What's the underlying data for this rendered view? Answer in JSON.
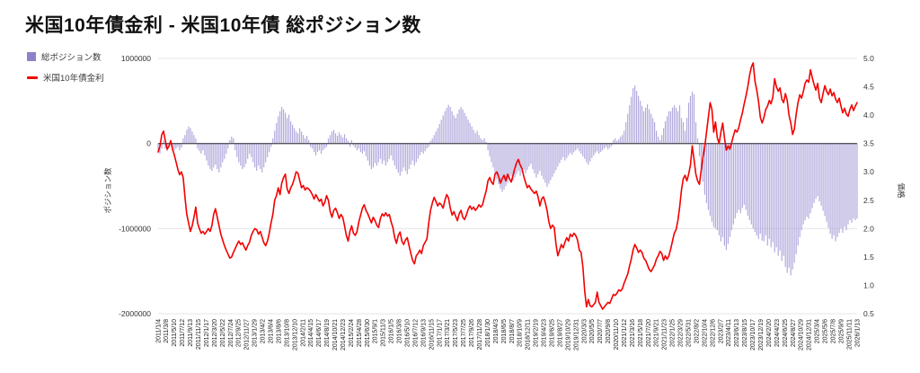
{
  "title": "米国10年債金利 - 米国10年債 総ポジション数",
  "legend": {
    "items": [
      {
        "label": "総ポジション数",
        "color": "#8c82cc",
        "marker": "square"
      },
      {
        "label": "米国10年債金利",
        "color": "#f20000",
        "marker": "line"
      }
    ]
  },
  "left_axis": {
    "title": "ポジション数",
    "ticks": [
      "1000000",
      "0",
      "-1000000",
      "-2000000"
    ],
    "max": 1000000,
    "min": -2000000
  },
  "right_axis": {
    "title": "価格",
    "ticks": [
      "5.0",
      "4.5",
      "4.0",
      "3.5",
      "3.0",
      "2.5",
      "2.0",
      "1.5",
      "1.0",
      "0.5"
    ],
    "max": 5.0,
    "min": 0.5
  },
  "chart_data": {
    "type": "combo",
    "x_start": "2011/1/4",
    "x_end": "2026/1/13",
    "grid": "horizontal-only",
    "legend_position": "top-left",
    "x_tick_labels": [
      "2011/1/4",
      "2011/3/8",
      "2011/5/10",
      "2011/7/12",
      "2011/9/13",
      "2011/11/15",
      "2012/1/17",
      "2012/3/20",
      "2012/5/22",
      "2012/7/24",
      "2012/9/25",
      "2012/11/27",
      "2013/1/29",
      "2013/4/2",
      "2013/6/4",
      "2013/8/6",
      "2013/10/8",
      "2013/12/10",
      "2014/2/11",
      "2014/4/15",
      "2014/6/17",
      "2014/8/19",
      "2014/10/21",
      "2014/12/23",
      "2015/2/24",
      "2015/4/28",
      "2015/6/30",
      "2015/9/1",
      "2015/11/3",
      "2016/1/5",
      "2016/3/8",
      "2016/5/10",
      "2016/7/12",
      "2016/9/13",
      "2016/11/15",
      "2017/1/17",
      "2017/3/21",
      "2017/5/23",
      "2017/7/25",
      "2017/9/26",
      "2017/11/28",
      "2018/1/30",
      "2018/4/3",
      "2018/6/5",
      "2018/8/7",
      "2018/10/9",
      "2018/12/11",
      "2019/2/19",
      "2019/4/23",
      "2019/6/25",
      "2019/8/27",
      "2019/10/29",
      "2019/12/31",
      "2020/3/3",
      "2020/5/5",
      "2020/7/7",
      "2020/9/8",
      "2020/11/10",
      "2021/1/12",
      "2021/3/16",
      "2021/5/18",
      "2021/7/20",
      "2021/9/21",
      "2021/11/23",
      "2022/1/25",
      "2022/3/29",
      "2022/5/31",
      "2022/8/2",
      "2022/10/4",
      "2022/12/6",
      "2023/2/7",
      "2023/4/11",
      "2023/6/13",
      "2023/8/15",
      "2023/10/17",
      "2023/12/19",
      "2024/2/20",
      "2024/4/23",
      "2024/6/25",
      "2024/8/27",
      "2024/10/29",
      "2024/12/31",
      "2025/3/4",
      "2025/5/6",
      "2025/7/8",
      "2025/9/9",
      "2025/11/11",
      "2026/1/13"
    ],
    "series": [
      {
        "name": "総ポジション数",
        "type": "bar",
        "axis": "left",
        "color": "#a49bd6",
        "values": [
          -80000,
          -120000,
          -60000,
          40000,
          -60000,
          -90000,
          -40000,
          30000,
          -50000,
          -80000,
          -60000,
          -40000,
          -80000,
          -50000,
          60000,
          100000,
          160000,
          200000,
          180000,
          140000,
          100000,
          60000,
          -60000,
          -90000,
          -120000,
          -80000,
          -140000,
          -200000,
          -260000,
          -300000,
          -320000,
          -280000,
          -250000,
          -300000,
          -340000,
          -280000,
          -220000,
          -180000,
          -120000,
          -60000,
          40000,
          80000,
          60000,
          -80000,
          -160000,
          -220000,
          -260000,
          -300000,
          -280000,
          -240000,
          -180000,
          -120000,
          -160000,
          -220000,
          -280000,
          -320000,
          -260000,
          -300000,
          -340000,
          -280000,
          -220000,
          -160000,
          -100000,
          -40000,
          60000,
          150000,
          240000,
          320000,
          380000,
          430000,
          400000,
          360000,
          300000,
          340000,
          260000,
          220000,
          180000,
          140000,
          120000,
          180000,
          140000,
          100000,
          60000,
          90000,
          40000,
          -40000,
          -60000,
          -100000,
          -140000,
          -100000,
          -80000,
          -120000,
          -80000,
          -60000,
          -40000,
          60000,
          100000,
          140000,
          160000,
          120000,
          90000,
          130000,
          100000,
          70000,
          110000,
          60000,
          30000,
          -40000,
          40000,
          -30000,
          -50000,
          -80000,
          -60000,
          -100000,
          -120000,
          -90000,
          -150000,
          -200000,
          -260000,
          -300000,
          -280000,
          -230000,
          -260000,
          -220000,
          -180000,
          -240000,
          -200000,
          -260000,
          -220000,
          -180000,
          -140000,
          -200000,
          -260000,
          -300000,
          -340000,
          -380000,
          -330000,
          -280000,
          -320000,
          -360000,
          -300000,
          -250000,
          -200000,
          -260000,
          -220000,
          -180000,
          -140000,
          -100000,
          -120000,
          -90000,
          -60000,
          -40000,
          30000,
          60000,
          100000,
          140000,
          180000,
          230000,
          280000,
          330000,
          380000,
          420000,
          455000,
          430000,
          380000,
          330000,
          300000,
          350000,
          400000,
          430000,
          400000,
          360000,
          320000,
          280000,
          240000,
          200000,
          160000,
          120000,
          150000,
          100000,
          60000,
          40000,
          60000,
          20000,
          -80000,
          -150000,
          -220000,
          -280000,
          -350000,
          -420000,
          -480000,
          -530000,
          -570000,
          -540000,
          -500000,
          -460000,
          -420000,
          -380000,
          -440000,
          -400000,
          -360000,
          -320000,
          -380000,
          -340000,
          -300000,
          -350000,
          -310000,
          -270000,
          -240000,
          -300000,
          -350000,
          -400000,
          -360000,
          -320000,
          -380000,
          -420000,
          -460000,
          -510000,
          -470000,
          -430000,
          -390000,
          -350000,
          -310000,
          -270000,
          -230000,
          -190000,
          -160000,
          -200000,
          -170000,
          -140000,
          -110000,
          -130000,
          -100000,
          -80000,
          -60000,
          -90000,
          -120000,
          -150000,
          -180000,
          -220000,
          -250000,
          -210000,
          -170000,
          -140000,
          -110000,
          -90000,
          -120000,
          -100000,
          -80000,
          -60000,
          -40000,
          -70000,
          -50000,
          -30000,
          40000,
          60000,
          30000,
          50000,
          80000,
          100000,
          150000,
          250000,
          350000,
          450000,
          550000,
          650000,
          680000,
          620000,
          560000,
          500000,
          440000,
          380000,
          420000,
          460000,
          400000,
          350000,
          300000,
          250000,
          150000,
          80000,
          40000,
          100000,
          180000,
          260000,
          320000,
          380000,
          380000,
          420000,
          450000,
          420000,
          380000,
          450000,
          300000,
          250000,
          150000,
          300000,
          480000,
          560000,
          610000,
          580000,
          250000,
          60000,
          -150000,
          -300000,
          -450000,
          -600000,
          -700000,
          -780000,
          -850000,
          -920000,
          -980000,
          -1000000,
          -1020000,
          -1080000,
          -1150000,
          -1100000,
          -1200000,
          -1250000,
          -1180000,
          -1100000,
          -1020000,
          -950000,
          -880000,
          -820000,
          -780000,
          -820000,
          -760000,
          -720000,
          -780000,
          -850000,
          -900000,
          -950000,
          -1000000,
          -1040000,
          -1080000,
          -1120000,
          -1060000,
          -1140000,
          -1150000,
          -1080000,
          -1200000,
          -1120000,
          -1220000,
          -1160000,
          -1280000,
          -1220000,
          -1320000,
          -1260000,
          -1380000,
          -1320000,
          -1450000,
          -1520000,
          -1460000,
          -1550000,
          -1480000,
          -1400000,
          -1300000,
          -1200000,
          -1100000,
          -1020000,
          -950000,
          -900000,
          -860000,
          -880000,
          -820000,
          -760000,
          -700000,
          -650000,
          -620000,
          -680000,
          -730000,
          -790000,
          -850000,
          -920000,
          -990000,
          -1060000,
          -1120000,
          -1080000,
          -1150000,
          -1100000,
          -1050000,
          -1000000,
          -1050000,
          -980000,
          -1020000,
          -950000,
          -900000,
          -930000,
          -880000,
          -900000,
          -880000
        ]
      },
      {
        "name": "米国10年債金利",
        "type": "line",
        "axis": "right",
        "color": "#f20000",
        "values": [
          3.35,
          3.45,
          3.65,
          3.72,
          3.55,
          3.4,
          3.45,
          3.55,
          3.4,
          3.3,
          3.18,
          3.05,
          2.95,
          3.0,
          2.9,
          2.55,
          2.25,
          2.1,
          1.95,
          2.05,
          2.2,
          2.38,
          2.1,
          2.0,
          1.92,
          1.95,
          1.9,
          1.95,
          2.0,
          1.95,
          2.05,
          2.25,
          2.35,
          2.2,
          2.05,
          1.9,
          1.8,
          1.7,
          1.62,
          1.55,
          1.48,
          1.5,
          1.58,
          1.65,
          1.72,
          1.78,
          1.72,
          1.75,
          1.68,
          1.62,
          1.7,
          1.76,
          1.88,
          1.95,
          2.0,
          1.98,
          1.9,
          1.95,
          1.85,
          1.75,
          1.7,
          1.78,
          1.92,
          2.1,
          2.25,
          2.5,
          2.58,
          2.72,
          2.6,
          2.8,
          2.9,
          2.96,
          2.7,
          2.62,
          2.72,
          2.78,
          2.88,
          3.0,
          2.98,
          2.85,
          2.72,
          2.76,
          2.68,
          2.72,
          2.7,
          2.66,
          2.6,
          2.52,
          2.6,
          2.54,
          2.48,
          2.52,
          2.4,
          2.46,
          2.58,
          2.5,
          2.3,
          2.2,
          2.32,
          2.36,
          2.28,
          2.18,
          2.25,
          2.2,
          2.05,
          1.88,
          1.78,
          1.95,
          2.05,
          1.92,
          1.88,
          1.95,
          2.12,
          2.24,
          2.36,
          2.42,
          2.32,
          2.26,
          2.18,
          2.1,
          2.2,
          2.14,
          2.06,
          2.02,
          2.18,
          2.26,
          2.22,
          2.28,
          2.22,
          2.25,
          2.12,
          2.02,
          1.84,
          1.74,
          1.88,
          1.94,
          1.78,
          1.72,
          1.8,
          1.84,
          1.7,
          1.56,
          1.44,
          1.38,
          1.52,
          1.56,
          1.62,
          1.56,
          1.7,
          1.76,
          1.82,
          2.1,
          2.32,
          2.45,
          2.55,
          2.48,
          2.4,
          2.45,
          2.42,
          2.36,
          2.5,
          2.6,
          2.54,
          2.36,
          2.24,
          2.3,
          2.22,
          2.14,
          2.26,
          2.32,
          2.2,
          2.16,
          2.24,
          2.34,
          2.4,
          2.34,
          2.38,
          2.32,
          2.36,
          2.42,
          2.38,
          2.42,
          2.55,
          2.66,
          2.84,
          2.9,
          2.82,
          2.78,
          2.96,
          3.0,
          2.92,
          2.8,
          2.88,
          2.94,
          2.84,
          2.96,
          2.88,
          2.82,
          2.94,
          3.06,
          3.16,
          3.22,
          3.12,
          3.06,
          2.92,
          2.82,
          2.72,
          2.76,
          2.7,
          2.66,
          2.62,
          2.66,
          2.56,
          2.4,
          2.52,
          2.56,
          2.46,
          2.32,
          2.12,
          2.0,
          2.06,
          2.02,
          1.72,
          1.52,
          1.62,
          1.72,
          1.66,
          1.76,
          1.84,
          1.78,
          1.9,
          1.86,
          1.92,
          1.88,
          1.8,
          1.62,
          1.58,
          1.32,
          0.9,
          0.62,
          0.75,
          0.64,
          0.62,
          0.66,
          0.7,
          0.88,
          0.7,
          0.64,
          0.58,
          0.62,
          0.66,
          0.7,
          0.68,
          0.76,
          0.84,
          0.82,
          0.86,
          0.92,
          0.9,
          0.94,
          1.04,
          1.12,
          1.2,
          1.34,
          1.46,
          1.62,
          1.72,
          1.66,
          1.58,
          1.62,
          1.58,
          1.48,
          1.44,
          1.36,
          1.28,
          1.24,
          1.3,
          1.36,
          1.46,
          1.52,
          1.6,
          1.56,
          1.44,
          1.52,
          1.46,
          1.52,
          1.64,
          1.78,
          1.92,
          1.98,
          2.14,
          2.38,
          2.68,
          2.88,
          2.94,
          2.84,
          2.96,
          3.12,
          3.46,
          3.22,
          2.96,
          2.84,
          2.78,
          3.02,
          3.26,
          3.44,
          3.7,
          3.96,
          4.22,
          4.1,
          3.7,
          3.88,
          3.6,
          3.5,
          3.7,
          3.86,
          3.6,
          3.38,
          3.46,
          3.4,
          3.52,
          3.64,
          3.74,
          3.7,
          3.78,
          3.92,
          4.04,
          4.2,
          4.34,
          4.5,
          4.7,
          4.85,
          4.92,
          4.6,
          4.44,
          4.24,
          3.96,
          3.86,
          3.96,
          4.1,
          4.16,
          4.26,
          4.2,
          4.32,
          4.64,
          4.5,
          4.42,
          4.48,
          4.28,
          4.22,
          4.38,
          4.26,
          4.0,
          3.86,
          3.66,
          3.76,
          4.02,
          4.22,
          4.36,
          4.3,
          4.42,
          4.56,
          4.62,
          4.58,
          4.8,
          4.66,
          4.54,
          4.44,
          4.56,
          4.3,
          4.22,
          4.38,
          4.52,
          4.42,
          4.36,
          4.46,
          4.34,
          4.4,
          4.28,
          4.22,
          4.3,
          4.16,
          4.04,
          4.12,
          4.02,
          3.98,
          4.1,
          4.18,
          4.08,
          4.16,
          4.22
        ]
      }
    ]
  }
}
